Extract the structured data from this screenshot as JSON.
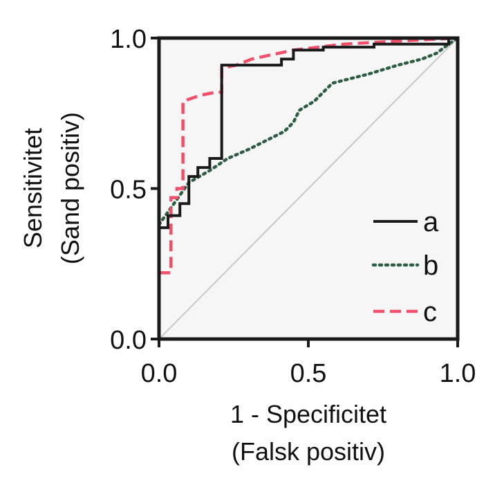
{
  "chart_data": {
    "type": "line",
    "title": "",
    "xlabel_lines": [
      "1 - Specificitet",
      "(Falsk positiv)"
    ],
    "ylabel_lines": [
      "Sensitivitet",
      "(Sand positiv)"
    ],
    "xlim": [
      0,
      1
    ],
    "ylim": [
      0,
      1
    ],
    "x_ticks": [
      0.0,
      0.5,
      1.0
    ],
    "x_tick_labels": [
      "0.0",
      "0.5",
      "1.0"
    ],
    "y_ticks": [
      0.0,
      0.5,
      1.0
    ],
    "y_tick_labels": [
      "0.0",
      "0.5",
      "1.0"
    ],
    "grid": false,
    "legend_position": "bottom-right",
    "reference_line": {
      "x": [
        0,
        1
      ],
      "y": [
        0,
        1
      ],
      "color": "#c8c8c8"
    },
    "series": [
      {
        "name": "a",
        "color": "#1a1a1a",
        "dash": "solid",
        "x": [
          0.0,
          0.0,
          0.03,
          0.03,
          0.07,
          0.07,
          0.1,
          0.1,
          0.13,
          0.13,
          0.17,
          0.17,
          0.21,
          0.21,
          0.24,
          0.34,
          0.41,
          0.41,
          0.45,
          0.45,
          0.55,
          0.55,
          0.72,
          0.72,
          0.97,
          0.97,
          1.0
        ],
        "y": [
          0.29,
          0.37,
          0.37,
          0.41,
          0.41,
          0.45,
          0.45,
          0.54,
          0.54,
          0.57,
          0.57,
          0.6,
          0.6,
          0.91,
          0.91,
          0.91,
          0.91,
          0.93,
          0.93,
          0.96,
          0.96,
          0.97,
          0.97,
          0.98,
          0.98,
          1.0,
          1.0
        ]
      },
      {
        "name": "b",
        "color": "#2e5e42",
        "dash": "dotted",
        "x": [
          0.0,
          0.05,
          0.1,
          0.17,
          0.23,
          0.3,
          0.36,
          0.42,
          0.45,
          0.47,
          0.52,
          0.58,
          0.62,
          0.7,
          0.8,
          0.88,
          0.93,
          0.97,
          1.0
        ],
        "y": [
          0.38,
          0.45,
          0.52,
          0.56,
          0.6,
          0.63,
          0.66,
          0.69,
          0.72,
          0.76,
          0.79,
          0.85,
          0.86,
          0.88,
          0.91,
          0.93,
          0.95,
          0.98,
          1.0
        ],
        "marker": null
      },
      {
        "name": "c",
        "color": "#f0506a",
        "dash": "dashed",
        "x": [
          0.0,
          0.0,
          0.04,
          0.04,
          0.06,
          0.06,
          0.08,
          0.08,
          0.14,
          0.19,
          0.21,
          0.21,
          0.26,
          0.31,
          0.45,
          0.62,
          0.8,
          1.0
        ],
        "y": [
          0.0,
          0.22,
          0.22,
          0.47,
          0.47,
          0.5,
          0.5,
          0.79,
          0.81,
          0.82,
          0.82,
          0.9,
          0.91,
          0.93,
          0.96,
          0.98,
          0.99,
          1.0
        ]
      }
    ]
  },
  "colors": {
    "axis": "#1a1a1a",
    "plot_background": "#f6f6f6"
  }
}
